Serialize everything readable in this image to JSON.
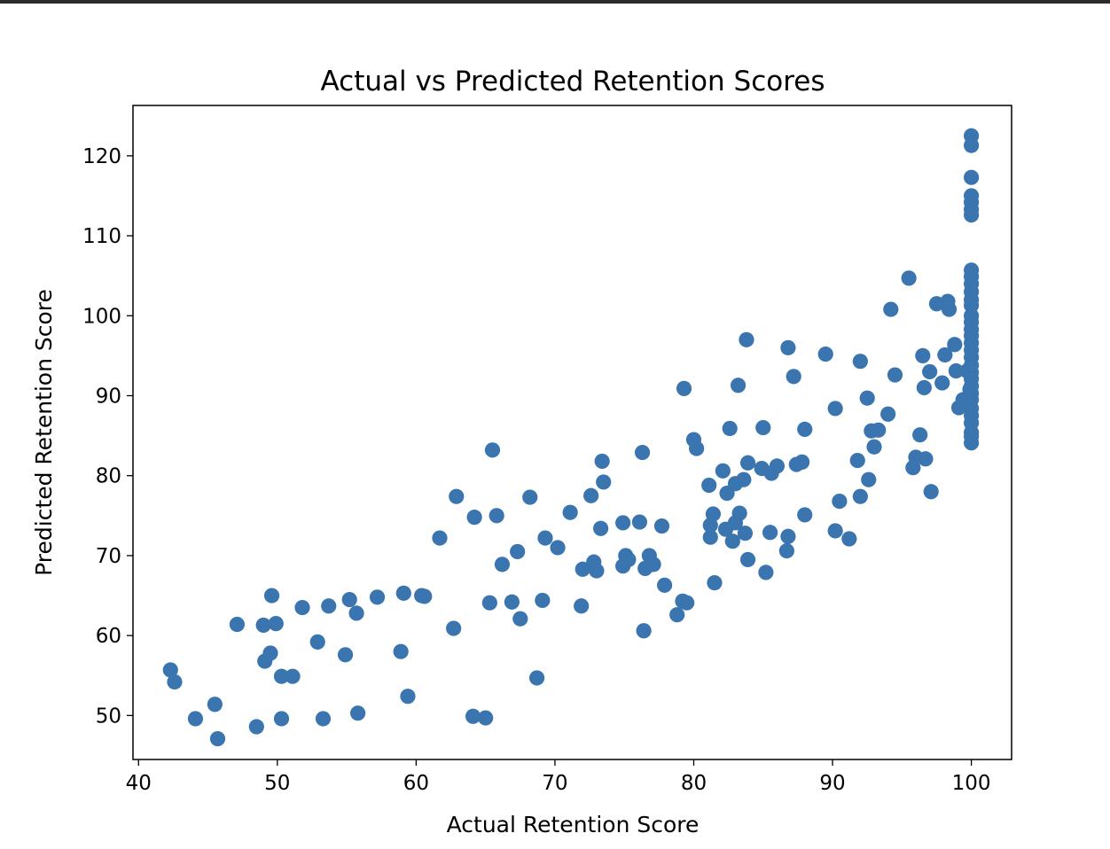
{
  "chart_data": {
    "type": "scatter",
    "title": "Actual vs Predicted Retention Scores",
    "xlabel": "Actual Retention Score",
    "ylabel": "Predicted Retention Score",
    "xlim": [
      39.6,
      102.9
    ],
    "ylim": [
      44.5,
      126.3
    ],
    "xticks": [
      40,
      50,
      60,
      70,
      80,
      90,
      100
    ],
    "yticks": [
      50,
      60,
      70,
      80,
      90,
      100,
      110,
      120
    ],
    "grid": false,
    "legend": "none",
    "marker_color": "#3a75b0",
    "series": [
      {
        "points": [
          [
            42.3,
            55.7
          ],
          [
            42.6,
            54.2
          ],
          [
            44.1,
            49.6
          ],
          [
            45.5,
            51.4
          ],
          [
            45.7,
            47.1
          ],
          [
            47.1,
            61.4
          ],
          [
            48.5,
            48.6
          ],
          [
            49.0,
            61.3
          ],
          [
            49.1,
            56.8
          ],
          [
            49.5,
            57.8
          ],
          [
            49.6,
            65.0
          ],
          [
            49.9,
            61.5
          ],
          [
            50.3,
            49.6
          ],
          [
            50.3,
            54.9
          ],
          [
            51.1,
            54.9
          ],
          [
            51.8,
            63.5
          ],
          [
            52.9,
            59.2
          ],
          [
            53.3,
            49.6
          ],
          [
            53.7,
            63.7
          ],
          [
            54.9,
            57.6
          ],
          [
            55.2,
            64.5
          ],
          [
            55.7,
            62.8
          ],
          [
            55.8,
            50.3
          ],
          [
            57.2,
            64.8
          ],
          [
            58.9,
            58.0
          ],
          [
            59.1,
            65.3
          ],
          [
            59.4,
            52.4
          ],
          [
            60.4,
            65.0
          ],
          [
            60.6,
            64.9
          ],
          [
            61.7,
            72.2
          ],
          [
            62.7,
            60.9
          ],
          [
            62.9,
            77.4
          ],
          [
            64.1,
            49.9
          ],
          [
            64.2,
            74.8
          ],
          [
            65.0,
            49.7
          ],
          [
            65.3,
            64.1
          ],
          [
            65.5,
            83.2
          ],
          [
            65.8,
            75.0
          ],
          [
            66.2,
            68.9
          ],
          [
            66.9,
            64.2
          ],
          [
            67.3,
            70.5
          ],
          [
            67.5,
            62.1
          ],
          [
            68.2,
            77.3
          ],
          [
            68.7,
            54.7
          ],
          [
            69.1,
            64.4
          ],
          [
            69.3,
            72.2
          ],
          [
            70.2,
            71.0
          ],
          [
            71.1,
            75.4
          ],
          [
            71.9,
            63.7
          ],
          [
            72.0,
            68.3
          ],
          [
            72.6,
            77.5
          ],
          [
            72.8,
            69.2
          ],
          [
            73.0,
            68.1
          ],
          [
            73.3,
            73.4
          ],
          [
            73.4,
            81.8
          ],
          [
            73.5,
            79.2
          ],
          [
            74.9,
            74.1
          ],
          [
            74.9,
            68.7
          ],
          [
            75.1,
            70.0
          ],
          [
            75.3,
            69.5
          ],
          [
            76.1,
            74.2
          ],
          [
            76.3,
            82.9
          ],
          [
            76.4,
            60.6
          ],
          [
            76.5,
            68.4
          ],
          [
            76.8,
            70.0
          ],
          [
            77.1,
            68.9
          ],
          [
            77.7,
            73.7
          ],
          [
            77.9,
            66.3
          ],
          [
            78.8,
            62.6
          ],
          [
            79.2,
            64.3
          ],
          [
            79.3,
            90.9
          ],
          [
            79.5,
            64.1
          ],
          [
            80.0,
            84.5
          ],
          [
            80.2,
            83.4
          ],
          [
            81.1,
            78.8
          ],
          [
            81.2,
            73.8
          ],
          [
            81.2,
            72.3
          ],
          [
            81.4,
            75.2
          ],
          [
            81.5,
            66.6
          ],
          [
            82.1,
            80.6
          ],
          [
            82.3,
            73.3
          ],
          [
            82.4,
            77.8
          ],
          [
            82.6,
            85.9
          ],
          [
            82.8,
            71.8
          ],
          [
            83.0,
            79.0
          ],
          [
            83.0,
            74.1
          ],
          [
            83.2,
            91.3
          ],
          [
            83.3,
            75.3
          ],
          [
            83.6,
            79.5
          ],
          [
            83.7,
            72.8
          ],
          [
            83.8,
            97.0
          ],
          [
            83.9,
            81.6
          ],
          [
            83.9,
            69.5
          ],
          [
            84.9,
            80.9
          ],
          [
            85.0,
            86.0
          ],
          [
            85.2,
            67.9
          ],
          [
            85.5,
            72.9
          ],
          [
            85.6,
            80.3
          ],
          [
            86.0,
            81.2
          ],
          [
            86.7,
            70.6
          ],
          [
            86.8,
            96.0
          ],
          [
            86.8,
            72.4
          ],
          [
            87.2,
            92.4
          ],
          [
            87.4,
            81.4
          ],
          [
            87.8,
            81.7
          ],
          [
            88.0,
            85.8
          ],
          [
            88.0,
            75.1
          ],
          [
            89.5,
            95.2
          ],
          [
            90.2,
            88.4
          ],
          [
            90.2,
            73.1
          ],
          [
            90.5,
            76.8
          ],
          [
            91.2,
            72.1
          ],
          [
            91.8,
            81.9
          ],
          [
            92.0,
            94.3
          ],
          [
            92.0,
            77.4
          ],
          [
            92.5,
            89.7
          ],
          [
            92.6,
            79.5
          ],
          [
            92.8,
            85.6
          ],
          [
            93.0,
            83.6
          ],
          [
            93.3,
            85.7
          ],
          [
            94.0,
            87.7
          ],
          [
            94.2,
            100.8
          ],
          [
            94.5,
            92.6
          ],
          [
            95.5,
            104.7
          ],
          [
            95.8,
            81.0
          ],
          [
            96.0,
            82.3
          ],
          [
            96.3,
            85.1
          ],
          [
            96.5,
            95.0
          ],
          [
            96.6,
            91.0
          ],
          [
            96.7,
            82.1
          ],
          [
            97.0,
            93.0
          ],
          [
            97.1,
            78.0
          ],
          [
            97.5,
            101.5
          ],
          [
            97.9,
            91.6
          ],
          [
            98.1,
            95.1
          ],
          [
            98.3,
            101.8
          ],
          [
            98.4,
            100.8
          ],
          [
            98.8,
            96.4
          ],
          [
            98.9,
            93.1
          ],
          [
            99.1,
            88.5
          ],
          [
            99.4,
            89.5
          ],
          [
            99.7,
            93.1
          ],
          [
            99.9,
            90.8
          ],
          [
            100,
            122.5
          ],
          [
            100,
            121.3
          ],
          [
            100,
            117.3
          ],
          [
            100,
            115.0
          ],
          [
            100,
            114.2
          ],
          [
            100,
            113.3
          ],
          [
            100,
            112.6
          ],
          [
            100,
            105.7
          ],
          [
            100,
            104.9
          ],
          [
            100,
            104.0
          ],
          [
            100,
            103.0
          ],
          [
            100,
            102.0
          ],
          [
            100,
            101.3
          ],
          [
            100,
            100.0
          ],
          [
            100,
            99.2
          ],
          [
            100,
            98.3
          ],
          [
            100,
            97.5
          ],
          [
            100,
            96.6
          ],
          [
            100,
            95.7
          ],
          [
            100,
            94.8
          ],
          [
            100,
            93.8
          ],
          [
            100,
            92.9
          ],
          [
            100,
            92.1
          ],
          [
            100,
            91.2
          ],
          [
            100,
            90.3
          ],
          [
            100,
            89.5
          ],
          [
            100,
            88.4
          ],
          [
            100,
            87.5
          ],
          [
            100,
            86.6
          ],
          [
            100,
            85.4
          ],
          [
            100,
            84.9
          ],
          [
            100,
            84.1
          ]
        ]
      }
    ]
  }
}
